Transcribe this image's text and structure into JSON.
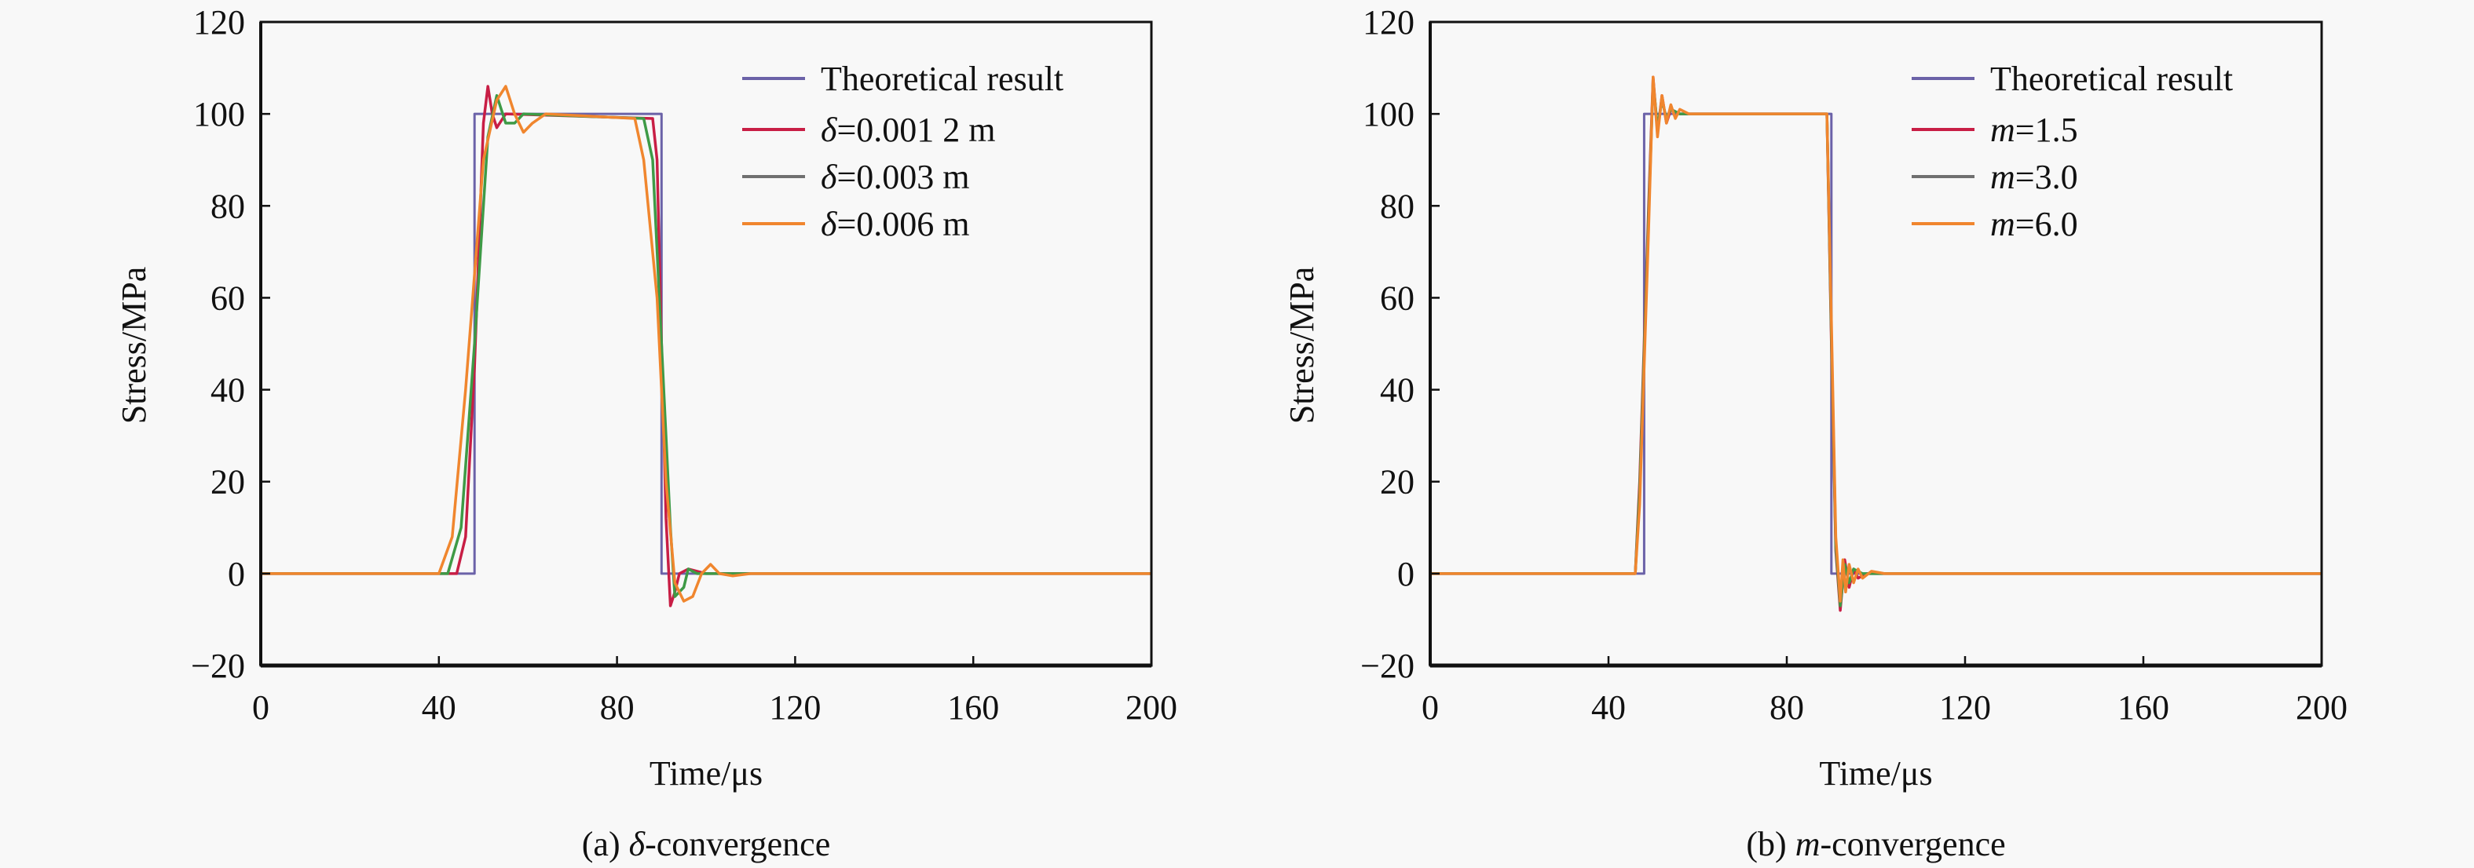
{
  "chart_data": [
    {
      "type": "line",
      "panel": "a",
      "caption_prefix": "(a) ",
      "caption_symbol": "δ",
      "caption_suffix": "-convergence",
      "xlabel": "Time/μs",
      "ylabel": "Stress/MPa",
      "xlim": [
        0,
        200
      ],
      "ylim": [
        -20,
        120
      ],
      "xticks": [
        0,
        40,
        80,
        120,
        160,
        200
      ],
      "yticks": [
        -20,
        0,
        20,
        40,
        60,
        80,
        100,
        120
      ],
      "xtick_labels": [
        "0",
        "40",
        "80",
        "120",
        "160",
        "200"
      ],
      "ytick_labels": [
        "−20",
        "0",
        "20",
        "40",
        "60",
        "80",
        "100",
        "120"
      ],
      "grid": false,
      "legend_position": "top-right",
      "series": [
        {
          "name": "Theoretical result",
          "symbol": "",
          "rest": "Theoretical result",
          "color": "#6b62a8",
          "legend_color": "#6b62a8",
          "points": [
            [
              0,
              0
            ],
            [
              48,
              0
            ],
            [
              48,
              100
            ],
            [
              90,
              100
            ],
            [
              90,
              0
            ],
            [
              200,
              0
            ]
          ]
        },
        {
          "name": "δ=0.001 2 m",
          "symbol": "δ",
          "rest": "=0.001 2 m",
          "color": "#c81e45",
          "legend_color": "#c81e45",
          "points": [
            [
              0,
              0
            ],
            [
              44,
              0
            ],
            [
              46,
              8
            ],
            [
              48,
              45
            ],
            [
              50,
              98
            ],
            [
              51,
              106
            ],
            [
              52,
              100
            ],
            [
              53,
              97
            ],
            [
              55,
              100
            ],
            [
              88,
              99
            ],
            [
              89,
              90
            ],
            [
              90,
              50
            ],
            [
              91,
              12
            ],
            [
              92,
              -7
            ],
            [
              93,
              -4
            ],
            [
              94,
              0
            ],
            [
              96,
              1
            ],
            [
              100,
              0
            ],
            [
              200,
              0
            ]
          ]
        },
        {
          "name": "δ=0.003 m",
          "symbol": "δ",
          "rest": "=0.003 m",
          "color": "#3e9a46",
          "legend_color": "#707070",
          "points": [
            [
              0,
              0
            ],
            [
              42,
              0
            ],
            [
              45,
              10
            ],
            [
              48,
              50
            ],
            [
              51,
              95
            ],
            [
              53,
              104
            ],
            [
              55,
              98
            ],
            [
              57,
              98
            ],
            [
              59,
              100
            ],
            [
              86,
              99
            ],
            [
              88,
              90
            ],
            [
              90,
              50
            ],
            [
              92,
              10
            ],
            [
              93,
              -5
            ],
            [
              95,
              -3
            ],
            [
              96,
              1
            ],
            [
              98,
              0
            ],
            [
              200,
              0
            ]
          ]
        },
        {
          "name": "δ=0.006 m",
          "symbol": "δ",
          "rest": "=0.006 m",
          "color": "#f0862e",
          "legend_color": "#f0862e",
          "points": [
            [
              0,
              0
            ],
            [
              40,
              0
            ],
            [
              43,
              8
            ],
            [
              46,
              40
            ],
            [
              50,
              90
            ],
            [
              53,
              103
            ],
            [
              55,
              106
            ],
            [
              57,
              100
            ],
            [
              59,
              96
            ],
            [
              61,
              98
            ],
            [
              64,
              100
            ],
            [
              84,
              99
            ],
            [
              86,
              90
            ],
            [
              89,
              60
            ],
            [
              91,
              20
            ],
            [
              93,
              -2
            ],
            [
              95,
              -6
            ],
            [
              97,
              -5
            ],
            [
              99,
              0
            ],
            [
              101,
              2
            ],
            [
              103,
              0
            ],
            [
              106,
              -0.5
            ],
            [
              110,
              0
            ],
            [
              200,
              0
            ]
          ]
        }
      ]
    },
    {
      "type": "line",
      "panel": "b",
      "caption_prefix": "(b) ",
      "caption_symbol": "m",
      "caption_suffix": "-convergence",
      "xlabel": "Time/μs",
      "ylabel": "Stress/MPa",
      "xlim": [
        0,
        200
      ],
      "ylim": [
        -20,
        120
      ],
      "xticks": [
        0,
        40,
        80,
        120,
        160,
        200
      ],
      "yticks": [
        -20,
        0,
        20,
        40,
        60,
        80,
        100,
        120
      ],
      "xtick_labels": [
        "0",
        "40",
        "80",
        "120",
        "160",
        "200"
      ],
      "ytick_labels": [
        "−20",
        "0",
        "20",
        "40",
        "60",
        "80",
        "100",
        "120"
      ],
      "grid": false,
      "legend_position": "top-right",
      "series": [
        {
          "name": "Theoretical result",
          "symbol": "",
          "rest": "Theoretical result",
          "color": "#6b62a8",
          "legend_color": "#6b62a8",
          "points": [
            [
              0,
              0
            ],
            [
              48,
              0
            ],
            [
              48,
              100
            ],
            [
              90,
              100
            ],
            [
              90,
              0
            ],
            [
              200,
              0
            ]
          ]
        },
        {
          "name": "m=1.5",
          "symbol": "m",
          "rest": "=1.5",
          "color": "#c81e45",
          "legend_color": "#c81e45",
          "points": [
            [
              0,
              0
            ],
            [
              46,
              0
            ],
            [
              47,
              20
            ],
            [
              49,
              80
            ],
            [
              50,
              108
            ],
            [
              51,
              96
            ],
            [
              52,
              104
            ],
            [
              53,
              98
            ],
            [
              54,
              101
            ],
            [
              56,
              100
            ],
            [
              89,
              100
            ],
            [
              90,
              50
            ],
            [
              91,
              5
            ],
            [
              92,
              -8
            ],
            [
              93,
              3
            ],
            [
              94,
              -3
            ],
            [
              95,
              1
            ],
            [
              96,
              -1
            ],
            [
              98,
              0
            ],
            [
              200,
              0
            ]
          ]
        },
        {
          "name": "m=3.0",
          "symbol": "m",
          "rest": "=3.0",
          "color": "#3e9a46",
          "legend_color": "#707070",
          "points": [
            [
              0,
              0
            ],
            [
              46,
              0
            ],
            [
              47,
              18
            ],
            [
              49,
              78
            ],
            [
              50,
              107
            ],
            [
              51,
              97
            ],
            [
              52,
              103
            ],
            [
              53,
              99
            ],
            [
              54,
              101
            ],
            [
              56,
              100
            ],
            [
              89,
              100
            ],
            [
              90,
              52
            ],
            [
              91,
              6
            ],
            [
              92,
              -7
            ],
            [
              93,
              2
            ],
            [
              94,
              -2
            ],
            [
              95,
              1
            ],
            [
              97,
              0
            ],
            [
              200,
              0
            ]
          ]
        },
        {
          "name": "m=6.0",
          "symbol": "m",
          "rest": "=6.0",
          "color": "#f0862e",
          "legend_color": "#f0862e",
          "points": [
            [
              0,
              0
            ],
            [
              46,
              0
            ],
            [
              47,
              15
            ],
            [
              49,
              75
            ],
            [
              50,
              108
            ],
            [
              51,
              95
            ],
            [
              52,
              104
            ],
            [
              53,
              98
            ],
            [
              54,
              102
            ],
            [
              55,
              99
            ],
            [
              56,
              101
            ],
            [
              58,
              100
            ],
            [
              89,
              100
            ],
            [
              90,
              55
            ],
            [
              91,
              8
            ],
            [
              92,
              -6
            ],
            [
              92.6,
              3
            ],
            [
              93.2,
              -4
            ],
            [
              94,
              2
            ],
            [
              95,
              -2
            ],
            [
              96,
              1
            ],
            [
              97,
              -1
            ],
            [
              99,
              0.5
            ],
            [
              102,
              0
            ],
            [
              200,
              0
            ]
          ]
        }
      ]
    }
  ]
}
